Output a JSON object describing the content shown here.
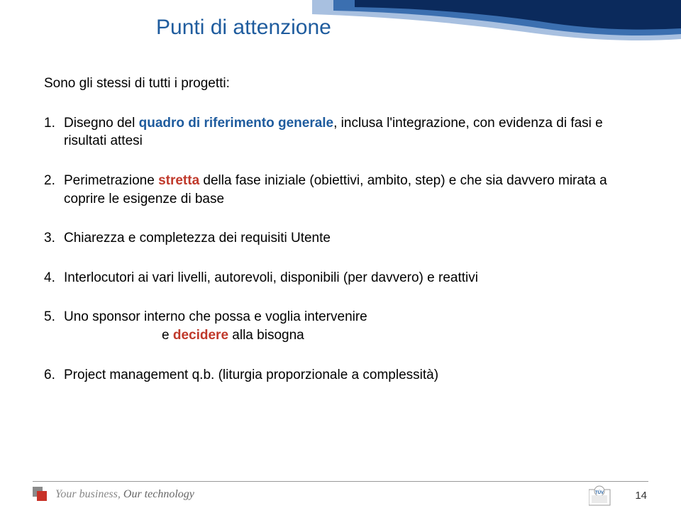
{
  "colors": {
    "title": "#1f5c9e",
    "accent_blue": "#1f5c9e",
    "accent_red": "#c0392b",
    "text": "#222222",
    "tagline": "#888888",
    "swoosh_dark": "#0b2a5c",
    "swoosh_light": "#a8c0e0",
    "swoosh_mid": "#3b6fb0",
    "square_red": "#c83228",
    "square_gray": "#8a8a8a"
  },
  "title": "Punti di attenzione",
  "intro": "Sono gli stessi di tutti i progetti:",
  "items": [
    {
      "num": "1.",
      "parts": [
        {
          "text": "Disegno del ",
          "bold": false
        },
        {
          "text": "quadro di riferimento generale",
          "bold": true,
          "color": "#1f5c9e"
        },
        {
          "text": ", inclusa l'integrazione, con evidenza di fasi e risultati attesi",
          "bold": false
        }
      ]
    },
    {
      "num": "2.",
      "parts": [
        {
          "text": "Perimetrazione ",
          "bold": false
        },
        {
          "text": "stretta",
          "bold": true,
          "color": "#c0392b"
        },
        {
          "text": " della fase iniziale (obiettivi, ambito, step) e che sia davvero mirata a coprire le esigenze di base",
          "bold": false
        }
      ]
    },
    {
      "num": "3.",
      "parts": [
        {
          "text": "Chiarezza e completezza dei requisiti Utente",
          "bold": false
        }
      ]
    },
    {
      "num": "4.",
      "parts": [
        {
          "text": "Interlocutori ai vari livelli, autorevoli, disponibili (per davvero) e reattivi",
          "bold": false
        }
      ]
    },
    {
      "num": "5.",
      "parts": [
        {
          "text": "Uno sponsor  interno che possa e voglia intervenire",
          "bold": false
        }
      ],
      "line2": [
        {
          "text": "e ",
          "bold": false
        },
        {
          "text": "decidere",
          "bold": true,
          "color": "#c0392b"
        },
        {
          "text": " alla bisogna",
          "bold": false
        }
      ]
    },
    {
      "num": "6.",
      "parts": [
        {
          "text": "Project management q.b.  (liturgia proporzionale a complessità)",
          "bold": false
        }
      ]
    }
  ],
  "footer": {
    "tagline_1": "Your business,",
    "tagline_2": " Our technology",
    "page": "14",
    "logo_text": "TÜV"
  }
}
